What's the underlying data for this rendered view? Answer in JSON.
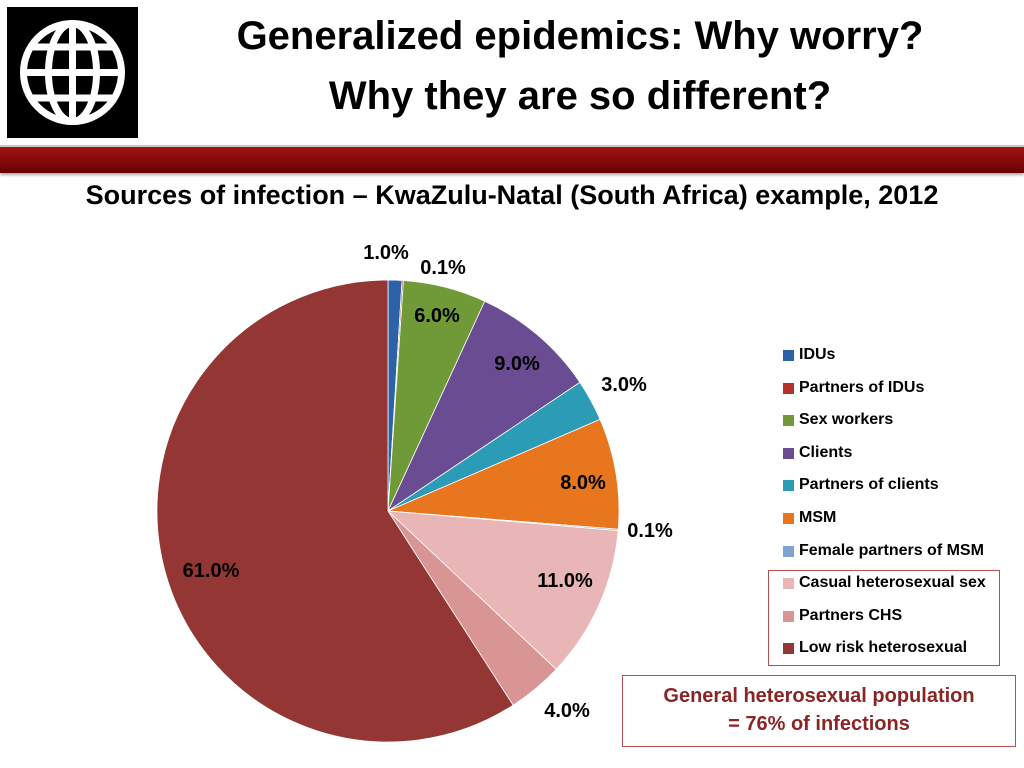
{
  "header": {
    "title_line1": "Generalized epidemics: Why worry?",
    "title_line2": "Why they are so different?",
    "logo": "world-bank-globe-logo"
  },
  "accent_color": "#8b0000",
  "chart_data": {
    "type": "pie",
    "title": "Sources of infection – KwaZulu-Natal (South Africa) example, 2012",
    "categories": [
      "IDUs",
      "Partners of IDUs",
      "Sex workers",
      "Clients",
      "Partners of clients",
      "MSM",
      "Female partners of MSM",
      "Casual heterosexual sex",
      "Partners CHS",
      "Low risk heterosexual"
    ],
    "values": [
      1.0,
      0.1,
      6.0,
      9.0,
      3.0,
      8.0,
      0.1,
      11.0,
      4.0,
      61.0
    ],
    "labels": [
      "1.0%",
      "0.1%",
      "6.0%",
      "9.0%",
      "3.0%",
      "8.0%",
      "0.1%",
      "11.0%",
      "4.0%",
      "61.0%"
    ],
    "colors": [
      "#2e62a8",
      "#b7312c",
      "#6f9a37",
      "#6a4c93",
      "#2c9bb6",
      "#e8761f",
      "#7fa3cf",
      "#e8b6b6",
      "#d99494",
      "#943634"
    ],
    "legend_position": "right"
  },
  "callout": {
    "line1": "General  heterosexual population",
    "line2": "= 76% of infections"
  }
}
